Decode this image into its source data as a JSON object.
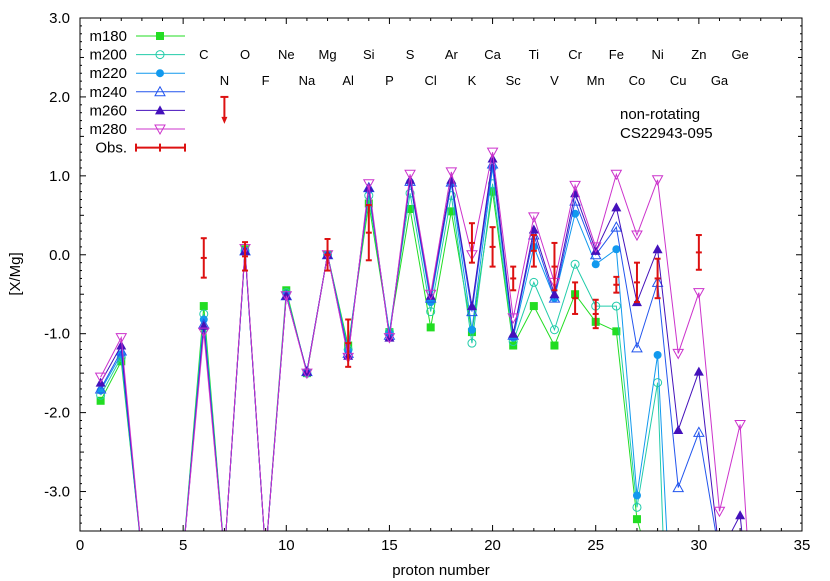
{
  "chart_data": {
    "type": "line",
    "xlabel": "proton number",
    "ylabel": "[X/Mg]",
    "xlim": [
      0,
      35
    ],
    "ylim": [
      -3.5,
      3.0
    ],
    "xticks": [
      0,
      5,
      10,
      15,
      20,
      25,
      30,
      35
    ],
    "xtick_labels": [
      "0",
      "5",
      "10",
      "15",
      "20",
      "25",
      "30",
      "35"
    ],
    "yticks": [
      -3.0,
      -2.0,
      -1.0,
      0.0,
      1.0,
      2.0,
      3.0
    ],
    "ytick_labels": [
      "-3.0",
      "-2.0",
      "-1.0",
      "0.0",
      "1.0",
      "2.0",
      "3.0"
    ],
    "legend_position": "top-left",
    "annotations": [
      "non-rotating",
      "CS22943-095"
    ],
    "element_labels_row1": [
      {
        "z": 6,
        "label": "C"
      },
      {
        "z": 8,
        "label": "O"
      },
      {
        "z": 10,
        "label": "Ne"
      },
      {
        "z": 12,
        "label": "Mg"
      },
      {
        "z": 14,
        "label": "Si"
      },
      {
        "z": 16,
        "label": "S"
      },
      {
        "z": 18,
        "label": "Ar"
      },
      {
        "z": 20,
        "label": "Ca"
      },
      {
        "z": 22,
        "label": "Ti"
      },
      {
        "z": 24,
        "label": "Cr"
      },
      {
        "z": 26,
        "label": "Fe"
      },
      {
        "z": 28,
        "label": "Ni"
      },
      {
        "z": 30,
        "label": "Zn"
      },
      {
        "z": 32,
        "label": "Ge"
      }
    ],
    "element_labels_row2": [
      {
        "z": 7,
        "label": "N"
      },
      {
        "z": 9,
        "label": "F"
      },
      {
        "z": 11,
        "label": "Na"
      },
      {
        "z": 13,
        "label": "Al"
      },
      {
        "z": 15,
        "label": "P"
      },
      {
        "z": 17,
        "label": "Cl"
      },
      {
        "z": 19,
        "label": "K"
      },
      {
        "z": 21,
        "label": "Sc"
      },
      {
        "z": 23,
        "label": "V"
      },
      {
        "z": 25,
        "label": "Mn"
      },
      {
        "z": 27,
        "label": "Co"
      },
      {
        "z": 29,
        "label": "Cu"
      },
      {
        "z": 31,
        "label": "Ga"
      }
    ],
    "series": [
      {
        "name": "m180",
        "color": "#22dd22",
        "marker": "square-filled",
        "points": [
          [
            1,
            -1.85
          ],
          [
            2,
            -1.35
          ],
          [
            3,
            -3.8
          ],
          [
            5,
            -3.8
          ],
          [
            6,
            -0.65
          ],
          [
            7,
            -3.8
          ],
          [
            8,
            0.07
          ],
          [
            9,
            -3.8
          ],
          [
            10,
            -0.45
          ],
          [
            11,
            -1.5
          ],
          [
            12,
            0.0
          ],
          [
            13,
            -1.15
          ],
          [
            14,
            0.65
          ],
          [
            15,
            -0.98
          ],
          [
            16,
            0.58
          ],
          [
            17,
            -0.92
          ],
          [
            18,
            0.55
          ],
          [
            19,
            -0.98
          ],
          [
            20,
            0.8
          ],
          [
            21,
            -1.15
          ],
          [
            22,
            -0.65
          ],
          [
            23,
            -1.15
          ],
          [
            24,
            -0.5
          ],
          [
            25,
            -0.85
          ],
          [
            26,
            -0.97
          ],
          [
            27,
            -3.35
          ],
          [
            27.5,
            -3.8
          ]
        ]
      },
      {
        "name": "m200",
        "color": "#22ccaa",
        "marker": "circle-open",
        "points": [
          [
            1,
            -1.78
          ],
          [
            2,
            -1.3
          ],
          [
            3,
            -3.8
          ],
          [
            5,
            -3.8
          ],
          [
            6,
            -0.75
          ],
          [
            7,
            -3.8
          ],
          [
            8,
            0.05
          ],
          [
            9,
            -3.8
          ],
          [
            10,
            -0.48
          ],
          [
            11,
            -1.5
          ],
          [
            12,
            0.0
          ],
          [
            13,
            -1.2
          ],
          [
            14,
            0.75
          ],
          [
            15,
            -0.98
          ],
          [
            16,
            0.78
          ],
          [
            17,
            -0.72
          ],
          [
            18,
            0.75
          ],
          [
            19,
            -1.12
          ],
          [
            20,
            0.9
          ],
          [
            21,
            -1.1
          ],
          [
            22,
            -0.35
          ],
          [
            23,
            -0.95
          ],
          [
            24,
            -0.12
          ],
          [
            25,
            -0.65
          ],
          [
            26,
            -0.65
          ],
          [
            27,
            -3.2
          ],
          [
            28,
            -1.62
          ],
          [
            28.3,
            -3.8
          ]
        ]
      },
      {
        "name": "m220",
        "color": "#1199ee",
        "marker": "circle-filled",
        "points": [
          [
            1,
            -1.72
          ],
          [
            2,
            -1.26
          ],
          [
            3,
            -3.8
          ],
          [
            5,
            -3.8
          ],
          [
            6,
            -0.82
          ],
          [
            7,
            -3.8
          ],
          [
            8,
            0.05
          ],
          [
            9,
            -3.8
          ],
          [
            10,
            -0.5
          ],
          [
            11,
            -1.48
          ],
          [
            12,
            0.0
          ],
          [
            13,
            -1.22
          ],
          [
            14,
            0.82
          ],
          [
            15,
            -1.0
          ],
          [
            16,
            0.92
          ],
          [
            17,
            -0.6
          ],
          [
            18,
            0.9
          ],
          [
            19,
            -0.95
          ],
          [
            20,
            1.1
          ],
          [
            21,
            -1.05
          ],
          [
            22,
            0.1
          ],
          [
            23,
            -0.55
          ],
          [
            24,
            0.52
          ],
          [
            25,
            -0.12
          ],
          [
            26,
            0.07
          ],
          [
            27,
            -3.05
          ],
          [
            28,
            -1.27
          ],
          [
            28.5,
            -3.8
          ]
        ]
      },
      {
        "name": "m240",
        "color": "#2255ee",
        "marker": "triangle-open",
        "points": [
          [
            1,
            -1.7
          ],
          [
            2,
            -1.22
          ],
          [
            3,
            -3.8
          ],
          [
            5,
            -3.8
          ],
          [
            6,
            -0.88
          ],
          [
            7,
            -3.8
          ],
          [
            8,
            0.05
          ],
          [
            9,
            -3.8
          ],
          [
            10,
            -0.52
          ],
          [
            11,
            -1.48
          ],
          [
            12,
            0.0
          ],
          [
            13,
            -1.25
          ],
          [
            14,
            0.85
          ],
          [
            15,
            -1.02
          ],
          [
            16,
            0.93
          ],
          [
            17,
            -0.55
          ],
          [
            18,
            0.92
          ],
          [
            19,
            -0.72
          ],
          [
            20,
            1.15
          ],
          [
            21,
            -1.02
          ],
          [
            22,
            0.25
          ],
          [
            23,
            -0.55
          ],
          [
            24,
            0.68
          ],
          [
            25,
            0.0
          ],
          [
            26,
            0.35
          ],
          [
            27,
            -1.18
          ],
          [
            28,
            -0.35
          ],
          [
            29,
            -2.95
          ],
          [
            30,
            -2.25
          ],
          [
            31,
            -3.8
          ]
        ]
      },
      {
        "name": "m260",
        "color": "#4411bb",
        "marker": "triangle-filled",
        "points": [
          [
            1,
            -1.62
          ],
          [
            2,
            -1.15
          ],
          [
            3,
            -3.8
          ],
          [
            5,
            -3.8
          ],
          [
            6,
            -0.9
          ],
          [
            7,
            -3.8
          ],
          [
            8,
            0.05
          ],
          [
            9,
            -3.8
          ],
          [
            10,
            -0.52
          ],
          [
            11,
            -1.48
          ],
          [
            12,
            0.0
          ],
          [
            13,
            -1.28
          ],
          [
            14,
            0.85
          ],
          [
            15,
            -1.05
          ],
          [
            16,
            0.95
          ],
          [
            17,
            -0.52
          ],
          [
            18,
            0.95
          ],
          [
            19,
            -0.65
          ],
          [
            20,
            1.22
          ],
          [
            21,
            -1.0
          ],
          [
            22,
            0.32
          ],
          [
            23,
            -0.5
          ],
          [
            24,
            0.78
          ],
          [
            25,
            0.05
          ],
          [
            26,
            0.6
          ],
          [
            27,
            -0.6
          ],
          [
            28,
            0.07
          ],
          [
            29,
            -2.22
          ],
          [
            30,
            -1.48
          ],
          [
            31,
            -3.8
          ],
          [
            32,
            -3.3
          ],
          [
            32.2,
            -3.8
          ]
        ]
      },
      {
        "name": "m280",
        "color": "#cc33cc",
        "marker": "triangle-down-open",
        "points": [
          [
            1,
            -1.55
          ],
          [
            2,
            -1.05
          ],
          [
            3,
            -3.8
          ],
          [
            5,
            -3.8
          ],
          [
            6,
            -0.98
          ],
          [
            7,
            -3.8
          ],
          [
            8,
            0.08
          ],
          [
            9,
            -3.8
          ],
          [
            10,
            -0.52
          ],
          [
            11,
            -1.5
          ],
          [
            12,
            0.0
          ],
          [
            13,
            -1.3
          ],
          [
            14,
            0.9
          ],
          [
            15,
            -1.05
          ],
          [
            16,
            1.02
          ],
          [
            17,
            -0.5
          ],
          [
            18,
            1.05
          ],
          [
            19,
            0.0
          ],
          [
            20,
            1.3
          ],
          [
            21,
            -0.8
          ],
          [
            22,
            0.48
          ],
          [
            23,
            -0.35
          ],
          [
            24,
            0.88
          ],
          [
            25,
            0.1
          ],
          [
            26,
            1.02
          ],
          [
            27,
            0.25
          ],
          [
            28,
            0.95
          ],
          [
            29,
            -1.25
          ],
          [
            30,
            -0.48
          ],
          [
            31,
            -3.25
          ],
          [
            32,
            -2.15
          ],
          [
            32.4,
            -3.8
          ]
        ]
      }
    ],
    "observations": {
      "name": "Obs.",
      "color": "#dd1111",
      "points": [
        {
          "x": 6,
          "y": -0.04,
          "err": 0.25
        },
        {
          "x": 8,
          "y": -0.02,
          "err": 0.18
        },
        {
          "x": 12,
          "y": 0.0,
          "err": 0.2
        },
        {
          "x": 13,
          "y": -1.12,
          "err": 0.3
        },
        {
          "x": 14,
          "y": 0.28,
          "err": 0.35
        },
        {
          "x": 19,
          "y": 0.15,
          "err": 0.25
        },
        {
          "x": 20,
          "y": 0.1,
          "err": 0.25
        },
        {
          "x": 21,
          "y": -0.3,
          "err": 0.15
        },
        {
          "x": 22,
          "y": 0.05,
          "err": 0.2
        },
        {
          "x": 23,
          "y": -0.15,
          "err": 0.3
        },
        {
          "x": 24,
          "y": -0.55,
          "err": 0.2
        },
        {
          "x": 25,
          "y": -0.75,
          "err": 0.18
        },
        {
          "x": 26,
          "y": -0.38,
          "err": 0.1
        },
        {
          "x": 27,
          "y": -0.35,
          "err": 0.25
        },
        {
          "x": 28,
          "y": -0.3,
          "err": 0.25
        },
        {
          "x": 30,
          "y": 0.03,
          "err": 0.22
        }
      ],
      "upper_limits": [
        {
          "x": 7,
          "y": 2.0
        }
      ]
    }
  }
}
